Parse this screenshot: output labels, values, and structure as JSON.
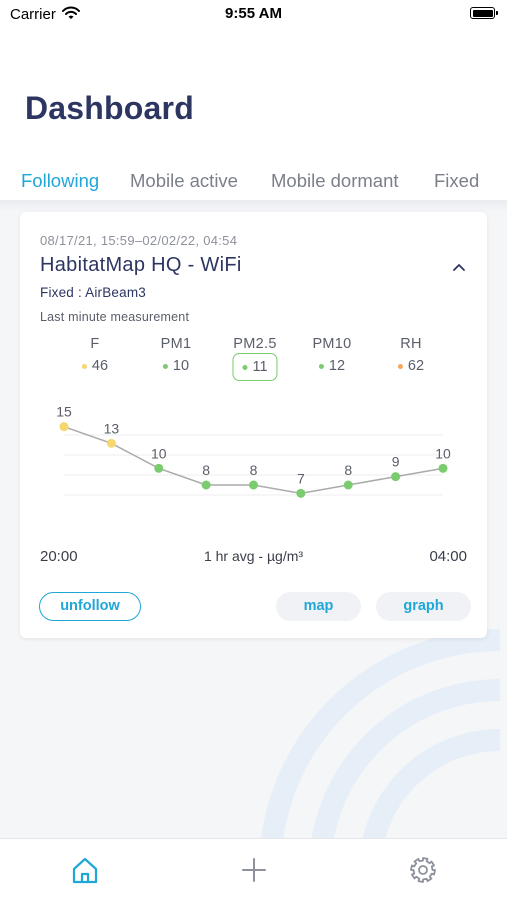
{
  "status_bar": {
    "carrier": "Carrier",
    "time": "9:55 AM"
  },
  "header": {
    "title": "Dashboard"
  },
  "tabs": [
    {
      "label": "Following",
      "active": true
    },
    {
      "label": "Mobile active",
      "active": false
    },
    {
      "label": "Mobile dormant",
      "active": false
    },
    {
      "label": "Fixed",
      "active": false
    }
  ],
  "card": {
    "date_range": "08/17/21, 15:59–02/02/22, 04:54",
    "name": "HabitatMap HQ - WiFi",
    "sensor": "Fixed : AirBeam3",
    "measurement_label": "Last minute measurement",
    "streams": [
      {
        "name": "F",
        "value": "46",
        "color": "#f5d76e"
      },
      {
        "name": "PM1",
        "value": "10",
        "color": "#7bcb6f"
      },
      {
        "name": "PM2.5",
        "value": "11",
        "color": "#7bcb6f",
        "selected": true
      },
      {
        "name": "PM10",
        "value": "12",
        "color": "#7bcb6f"
      },
      {
        "name": "RH",
        "value": "62",
        "color": "#f5a95c"
      }
    ],
    "axis": {
      "start": "20:00",
      "label": "1 hr avg - µg/m³",
      "end": "04:00"
    },
    "buttons": {
      "unfollow": "unfollow",
      "map": "map",
      "graph": "graph"
    }
  },
  "chart_data": {
    "type": "line",
    "x": [
      "20:00",
      "21:00",
      "22:00",
      "23:00",
      "00:00",
      "01:00",
      "02:00",
      "03:00",
      "04:00"
    ],
    "values": [
      15,
      13,
      10,
      8,
      8,
      7,
      8,
      9,
      10
    ],
    "point_colors": [
      "#f5d76e",
      "#f5d76e",
      "#7bcb6f",
      "#7bcb6f",
      "#7bcb6f",
      "#7bcb6f",
      "#7bcb6f",
      "#7bcb6f",
      "#7bcb6f"
    ],
    "line_color": "#aaaaaa",
    "xlabel": "1 hr avg - µg/m³",
    "ylim": [
      5,
      17
    ],
    "grid": true,
    "show_data_labels": true
  },
  "tab_bar": {
    "icons": [
      "home-icon",
      "plus-icon",
      "gear-icon"
    ],
    "accent": "#1fa7d8"
  }
}
